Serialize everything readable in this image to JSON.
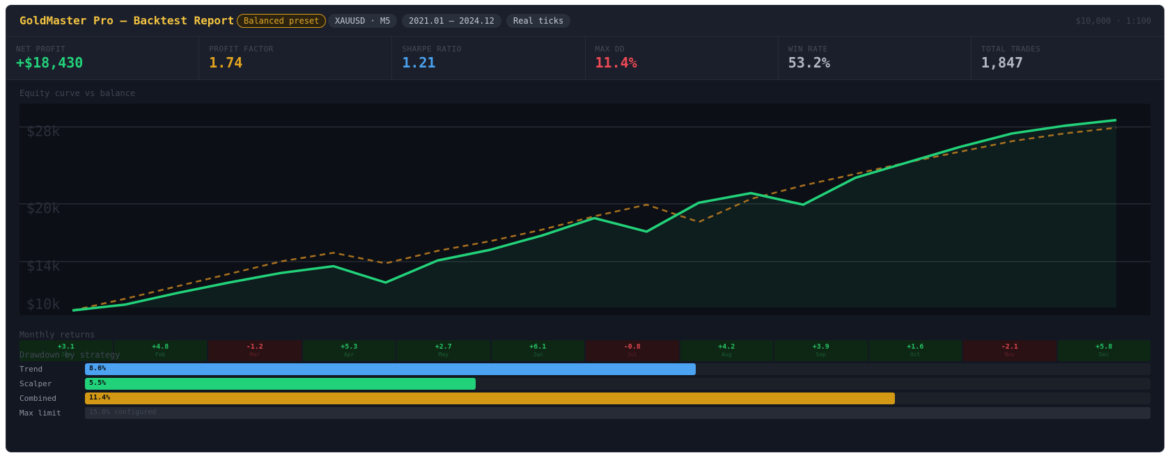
{
  "header": {
    "title": "GoldMaster Pro — Backtest Report",
    "preset": "Balanced preset",
    "symbol": "XAUUSD · M5",
    "period": "2021.01 – 2024.12",
    "ticks": "Real ticks",
    "deposit": "$10,000 · 1:100"
  },
  "kpis": [
    {
      "label": "NET PROFIT",
      "value": "+$18,430",
      "color": "#22d27a"
    },
    {
      "label": "PROFIT FACTOR",
      "value": "1.74",
      "color": "#e3a51f"
    },
    {
      "label": "SHARPE RATIO",
      "value": "1.21",
      "color": "#4ba3f2"
    },
    {
      "label": "MAX DD",
      "value": "11.4%",
      "color": "#ef4a55"
    },
    {
      "label": "WIN RATE",
      "value": "53.2%",
      "color": "#b4b9c4"
    },
    {
      "label": "TOTAL TRADES",
      "value": "1,847",
      "color": "#b4b9c4"
    }
  ],
  "equity_section": {
    "title": "Equity curve vs balance"
  },
  "chart_data": {
    "type": "line",
    "y_tick_labels": [
      "$28k",
      "$20k",
      "$14k",
      "$10k"
    ],
    "y_ticks": [
      28,
      20,
      14,
      10
    ],
    "ylim": [
      9.5,
      31.5
    ],
    "grid": true,
    "x": [
      0,
      1,
      2,
      3,
      4,
      5,
      6,
      7,
      8,
      9,
      10,
      11,
      12,
      13,
      14,
      15,
      16,
      17,
      18,
      19,
      20
    ],
    "series": [
      {
        "color": "#22d27a",
        "style": "solid",
        "fill": true,
        "values": [
          10.0,
          10.6,
          11.8,
          12.9,
          13.9,
          14.6,
          12.9,
          15.2,
          16.3,
          17.8,
          19.6,
          18.2,
          21.2,
          22.2,
          21.0,
          23.8,
          25.4,
          27.0,
          28.4,
          29.2,
          29.8
        ]
      },
      {
        "color": "#a8711f",
        "style": "dashed",
        "fill": false,
        "values": [
          10.0,
          11.2,
          12.5,
          13.8,
          15.1,
          16.0,
          14.9,
          16.2,
          17.2,
          18.4,
          19.8,
          21.0,
          19.2,
          21.6,
          23.0,
          24.2,
          25.4,
          26.5,
          27.6,
          28.4,
          29.0
        ]
      }
    ]
  },
  "monthly": {
    "title": "Monthly returns",
    "months": [
      {
        "value": "+3.1",
        "label": "Jan"
      },
      {
        "value": "+4.8",
        "label": "Feb"
      },
      {
        "value": "-1.2",
        "label": "Mar"
      },
      {
        "value": "+5.3",
        "label": "Apr"
      },
      {
        "value": "+2.7",
        "label": "May"
      },
      {
        "value": "+6.1",
        "label": "Jun"
      },
      {
        "value": "-0.8",
        "label": "Jul"
      },
      {
        "value": "+4.2",
        "label": "Aug"
      },
      {
        "value": "+3.9",
        "label": "Sep"
      },
      {
        "value": "+1.6",
        "label": "Oct"
      },
      {
        "value": "-2.1",
        "label": "Nov"
      },
      {
        "value": "+5.8",
        "label": "Dec"
      }
    ]
  },
  "drawdown": {
    "title": "Drawdown by strategy",
    "max_value": 15.0,
    "rows": [
      {
        "label": "Trend",
        "value": 8.6,
        "text": "8.6%",
        "color": "#4ba3f2"
      },
      {
        "label": "Scalper",
        "value": 5.5,
        "text": "5.5%",
        "color": "#22d27a"
      },
      {
        "label": "Combined",
        "value": 11.4,
        "text": "11.4%",
        "color": "#d39915"
      }
    ],
    "limit": {
      "label": "Max limit",
      "text": "15.0% configured"
    }
  }
}
